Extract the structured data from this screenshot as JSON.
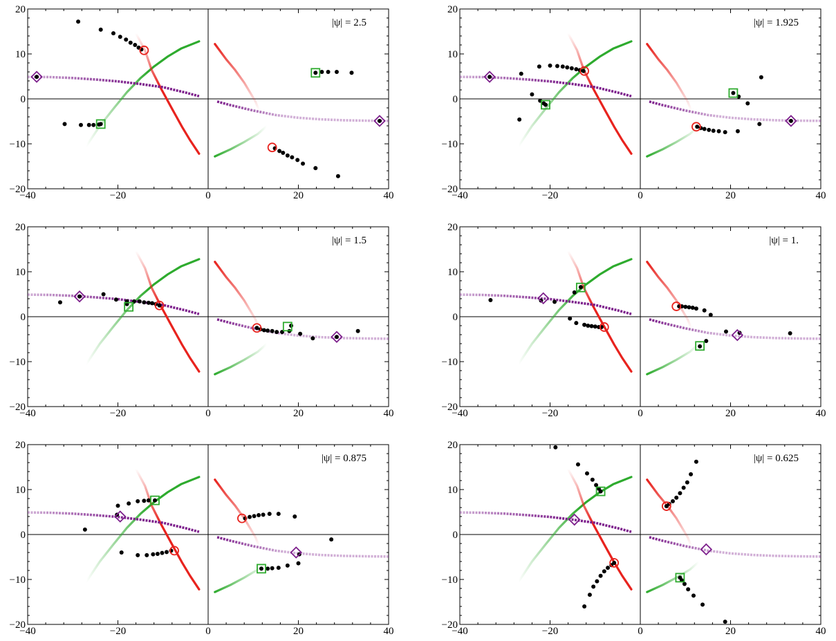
{
  "chart_data": {
    "type": "scatter",
    "layout": {
      "rows": 3,
      "cols": 2
    },
    "shared": {
      "xlim": [
        -40,
        40
      ],
      "ylim": [
        -20,
        20
      ],
      "xticks": [
        -40,
        -20,
        0,
        20,
        40
      ],
      "yticks": [
        -20,
        -10,
        0,
        10,
        20
      ],
      "colors": {
        "red": "#e8231e",
        "green": "#2eab2e",
        "purple": "#7d1f8c",
        "points": "#000000"
      },
      "curves": {
        "green_left": [
          [
            -27,
            -10.5
          ],
          [
            -24,
            -6
          ],
          [
            -21,
            -2.2
          ],
          [
            -18,
            1.5
          ],
          [
            -15,
            4.6
          ],
          [
            -12,
            7.2
          ],
          [
            -9,
            9.4
          ],
          [
            -6,
            11.2
          ],
          [
            -2,
            12.8
          ]
        ],
        "red_left": [
          [
            -16,
            14.6
          ],
          [
            -14,
            10.8
          ],
          [
            -12.5,
            6.4
          ],
          [
            -10.5,
            2.4
          ],
          [
            -8,
            -2.2
          ],
          [
            -5.8,
            -6.2
          ],
          [
            -4,
            -9.2
          ],
          [
            -2,
            -12.2
          ]
        ],
        "purple_left": [
          [
            -40,
            4.9
          ],
          [
            -35,
            4.85
          ],
          [
            -30,
            4.65
          ],
          [
            -25,
            4.3
          ],
          [
            -20,
            3.9
          ],
          [
            -15,
            3.3
          ],
          [
            -10,
            2.6
          ],
          [
            -5,
            1.4
          ],
          [
            -2,
            0.6
          ]
        ],
        "green_right": [
          [
            1.5,
            -12.8
          ],
          [
            5,
            -11.2
          ],
          [
            8,
            -9.6
          ],
          [
            11,
            -7.8
          ],
          [
            14,
            -5.2
          ],
          [
            17,
            -2.2
          ],
          [
            20,
            1.4
          ],
          [
            22.5,
            4.5
          ],
          [
            25,
            7.2
          ],
          [
            27,
            10
          ]
        ],
        "red_right": [
          [
            1.5,
            12.2
          ],
          [
            4,
            8.8
          ],
          [
            6,
            6.4
          ],
          [
            8,
            3.6
          ],
          [
            10.5,
            -0.6
          ],
          [
            12.5,
            -5.8
          ],
          [
            14.5,
            -9.8
          ],
          [
            16,
            -14.6
          ]
        ],
        "purple_right": [
          [
            2,
            -0.6
          ],
          [
            5,
            -1.4
          ],
          [
            10,
            -2.6
          ],
          [
            15,
            -3.6
          ],
          [
            20,
            -4.2
          ],
          [
            25,
            -4.55
          ],
          [
            30,
            -4.75
          ],
          [
            35,
            -4.85
          ],
          [
            40,
            -4.9
          ]
        ]
      }
    },
    "panels": [
      {
        "label": "|ψ| = 2.5",
        "circles": [
          [
            -14.2,
            10.8
          ],
          [
            14.2,
            -10.8
          ]
        ],
        "squares": [
          [
            -23.8,
            -5.6
          ],
          [
            23.8,
            5.8
          ]
        ],
        "diamonds": [
          [
            -38,
            4.9
          ],
          [
            38,
            -4.9
          ]
        ],
        "points": [
          [
            -28.8,
            17.2
          ],
          [
            -23.8,
            15.4
          ],
          [
            -21,
            14.6
          ],
          [
            -19.5,
            13.8
          ],
          [
            -18.2,
            13.2
          ],
          [
            -17.2,
            12.5
          ],
          [
            -16.2,
            12
          ],
          [
            -15.4,
            11.4
          ],
          [
            -14.8,
            11
          ],
          [
            -31.8,
            -5.6
          ],
          [
            -28.2,
            -5.8
          ],
          [
            -26.4,
            -5.8
          ],
          [
            -25.4,
            -5.8
          ],
          [
            -24.2,
            -5.7
          ],
          [
            -23.8,
            -5.6
          ],
          [
            23.8,
            5.8
          ],
          [
            25.2,
            6
          ],
          [
            26.6,
            6
          ],
          [
            28.5,
            6
          ],
          [
            31.8,
            5.8
          ],
          [
            38,
            -4.9
          ],
          [
            14.8,
            -11
          ],
          [
            15.8,
            -11.6
          ],
          [
            16.6,
            -12
          ],
          [
            17.6,
            -12.6
          ],
          [
            18.6,
            -13
          ],
          [
            19.8,
            -13.6
          ],
          [
            21,
            -14.4
          ],
          [
            23.8,
            -15.4
          ],
          [
            28.8,
            -17.2
          ],
          [
            -38,
            4.9
          ]
        ]
      },
      {
        "label": "|ψ| = 1.925",
        "circles": [
          [
            -12.4,
            6.2
          ],
          [
            12.4,
            -6.2
          ]
        ],
        "squares": [
          [
            -21,
            -1.3
          ],
          [
            20.6,
            1.3
          ]
        ],
        "diamonds": [
          [
            -33.4,
            4.9
          ],
          [
            33.4,
            -4.9
          ]
        ],
        "points": [
          [
            -33.4,
            4.9
          ],
          [
            -26.4,
            5.6
          ],
          [
            -24,
            1.0
          ],
          [
            -22.2,
            -0.4
          ],
          [
            -21.4,
            -1.0
          ],
          [
            -21,
            -1.3
          ],
          [
            -26.8,
            -4.6
          ],
          [
            -22.4,
            7.2
          ],
          [
            -20,
            7.4
          ],
          [
            -18.4,
            7.3
          ],
          [
            -17.2,
            7.2
          ],
          [
            -16.2,
            7
          ],
          [
            -15.2,
            6.8
          ],
          [
            -14.2,
            6.6
          ],
          [
            -13.4,
            6.4
          ],
          [
            -12.6,
            6.2
          ],
          [
            12.6,
            -6.2
          ],
          [
            13.4,
            -6.5
          ],
          [
            14.2,
            -6.7
          ],
          [
            15.2,
            -6.9
          ],
          [
            16.2,
            -7.1
          ],
          [
            17.4,
            -7.2
          ],
          [
            18.8,
            -7.4
          ],
          [
            21.6,
            -7.2
          ],
          [
            20.6,
            1.3
          ],
          [
            21.8,
            0.5
          ],
          [
            23.8,
            -1.0
          ],
          [
            26.4,
            -5.6
          ],
          [
            26.8,
            4.8
          ],
          [
            33.4,
            -4.9
          ]
        ]
      },
      {
        "label": "|ψ| = 1.5",
        "circles": [
          [
            -10.8,
            2.5
          ],
          [
            10.8,
            -2.5
          ]
        ],
        "squares": [
          [
            -17.6,
            2.2
          ],
          [
            17.6,
            -2.2
          ]
        ],
        "diamonds": [
          [
            -28.5,
            4.5
          ],
          [
            28.5,
            -4.5
          ]
        ],
        "points": [
          [
            -32.8,
            3.2
          ],
          [
            -28.5,
            4.5
          ],
          [
            -23.2,
            5
          ],
          [
            -20.4,
            3.8
          ],
          [
            -18,
            3.4
          ],
          [
            -18,
            2.8
          ],
          [
            -16.4,
            3.4
          ],
          [
            -15.2,
            3.4
          ],
          [
            -14.2,
            3.2
          ],
          [
            -13.2,
            3.1
          ],
          [
            -12.4,
            3
          ],
          [
            -11.6,
            2.8
          ],
          [
            -10.8,
            2.5
          ],
          [
            10.8,
            -2.5
          ],
          [
            11.6,
            -2.8
          ],
          [
            12.4,
            -3
          ],
          [
            13.2,
            -3.1
          ],
          [
            14.2,
            -3.2
          ],
          [
            15.2,
            -3.4
          ],
          [
            16.4,
            -3.4
          ],
          [
            18,
            -3.2
          ],
          [
            18.4,
            -2
          ],
          [
            20.4,
            -3.8
          ],
          [
            23.2,
            -4.8
          ],
          [
            28.5,
            -4.5
          ],
          [
            33.2,
            -3.2
          ]
        ]
      },
      {
        "label": "|ψ| = 1.",
        "circles": [
          [
            -8,
            -2.3
          ],
          [
            8,
            2.3
          ]
        ],
        "squares": [
          [
            -13.2,
            6.5
          ],
          [
            13.2,
            -6.5
          ]
        ],
        "diamonds": [
          [
            -21.5,
            4.1
          ],
          [
            21.5,
            -4.1
          ]
        ],
        "points": [
          [
            -33.2,
            3.7
          ],
          [
            -22,
            3.6
          ],
          [
            -19,
            3.3
          ],
          [
            -15.6,
            -0.4
          ],
          [
            -14.6,
            5.4
          ],
          [
            -13.2,
            6.6
          ],
          [
            -14.2,
            -1.4
          ],
          [
            -12.4,
            -1.8
          ],
          [
            -11.6,
            -2
          ],
          [
            -10.8,
            -2.1
          ],
          [
            -10,
            -2.2
          ],
          [
            -9.2,
            -2.3
          ],
          [
            -8.6,
            -2.3
          ],
          [
            8.6,
            2.3
          ],
          [
            9.2,
            2.3
          ],
          [
            10,
            2.2
          ],
          [
            10.8,
            2.1
          ],
          [
            11.6,
            2
          ],
          [
            12.4,
            1.8
          ],
          [
            14.2,
            1.4
          ],
          [
            13.2,
            -6.6
          ],
          [
            14.6,
            -5.4
          ],
          [
            15.6,
            0.4
          ],
          [
            19,
            -3.3
          ],
          [
            22,
            -3.6
          ],
          [
            33.2,
            -3.7
          ]
        ]
      },
      {
        "label": "|ψ| = 0.875",
        "circles": [
          [
            -7.5,
            -3.6
          ],
          [
            7.5,
            3.6
          ]
        ],
        "squares": [
          [
            -11.8,
            7.6
          ],
          [
            11.8,
            -7.6
          ]
        ],
        "diamonds": [
          [
            -19.5,
            4.0
          ],
          [
            19.5,
            -4.0
          ]
        ],
        "points": [
          [
            -27.3,
            1.1
          ],
          [
            -20,
            6.4
          ],
          [
            -20.2,
            4.4
          ],
          [
            -17.6,
            6.9
          ],
          [
            -15.6,
            7.4
          ],
          [
            -14.2,
            7.5
          ],
          [
            -13.2,
            7.6
          ],
          [
            -11.8,
            7.6
          ],
          [
            -19.2,
            -4
          ],
          [
            -15.6,
            -4.6
          ],
          [
            -13.6,
            -4.6
          ],
          [
            -12.2,
            -4.4
          ],
          [
            -11.2,
            -4.3
          ],
          [
            -10.2,
            -4.1
          ],
          [
            -9.2,
            -3.9
          ],
          [
            -8.2,
            -3.6
          ],
          [
            8.2,
            3.6
          ],
          [
            9.2,
            3.9
          ],
          [
            10.2,
            4.1
          ],
          [
            11.2,
            4.3
          ],
          [
            12.2,
            4.4
          ],
          [
            13.6,
            4.6
          ],
          [
            15.6,
            4.6
          ],
          [
            19.2,
            4
          ],
          [
            11.8,
            -7.6
          ],
          [
            13.2,
            -7.6
          ],
          [
            14.2,
            -7.5
          ],
          [
            15.6,
            -7.4
          ],
          [
            17.6,
            -6.9
          ],
          [
            20,
            -6.4
          ],
          [
            20.2,
            -4.4
          ],
          [
            27.3,
            -1.1
          ]
        ]
      },
      {
        "label": "|ψ| = 0.625",
        "circles": [
          [
            -5.8,
            -6.3
          ],
          [
            5.8,
            6.3
          ]
        ],
        "squares": [
          [
            -8.8,
            9.6
          ],
          [
            8.8,
            -9.6
          ]
        ],
        "diamonds": [
          [
            -14.6,
            3.3
          ],
          [
            14.6,
            -3.3
          ]
        ],
        "points": [
          [
            -18.8,
            19.4
          ],
          [
            -13.8,
            15.6
          ],
          [
            -11.8,
            13.6
          ],
          [
            -10.6,
            12.2
          ],
          [
            -9.8,
            11
          ],
          [
            -9.2,
            10.2
          ],
          [
            -8.8,
            9.6
          ],
          [
            -12.4,
            -16
          ],
          [
            -11.2,
            -13.4
          ],
          [
            -10.4,
            -11.6
          ],
          [
            -9.6,
            -10.4
          ],
          [
            -8.8,
            -9.2
          ],
          [
            -8,
            -8.2
          ],
          [
            -7.2,
            -7.4
          ],
          [
            -6.4,
            -6.8
          ],
          [
            -5.8,
            -6.3
          ],
          [
            5.8,
            6.3
          ],
          [
            6.4,
            6.8
          ],
          [
            7.2,
            7.4
          ],
          [
            8,
            8.2
          ],
          [
            8.8,
            9.2
          ],
          [
            9.6,
            10.4
          ],
          [
            10.4,
            11.6
          ],
          [
            11.2,
            13.4
          ],
          [
            12.4,
            16.2
          ],
          [
            8.8,
            -9.6
          ],
          [
            9.2,
            -10.2
          ],
          [
            9.8,
            -11
          ],
          [
            10.6,
            -12.2
          ],
          [
            11.8,
            -13.6
          ],
          [
            13.8,
            -15.6
          ],
          [
            18.8,
            -19.4
          ]
        ]
      }
    ]
  }
}
